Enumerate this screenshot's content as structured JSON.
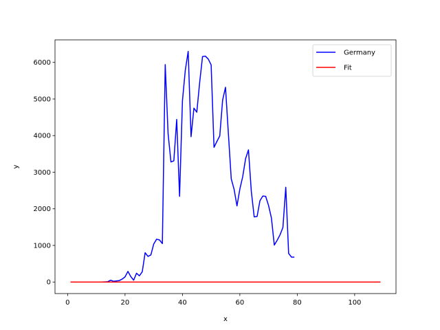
{
  "chart_data": {
    "type": "line",
    "title": "",
    "xlabel": "x",
    "ylabel": "y",
    "xlim": [
      -4.4,
      114.4
    ],
    "ylim": [
      -315,
      6615
    ],
    "xticks": [
      0,
      20,
      40,
      60,
      80,
      100
    ],
    "yticks": [
      0,
      1000,
      2000,
      3000,
      4000,
      5000,
      6000
    ],
    "grid": false,
    "legend": {
      "placement": "top-right"
    },
    "series": [
      {
        "name": "Germany",
        "color": "#0000ff",
        "x": [
          1,
          2,
          3,
          4,
          5,
          6,
          7,
          8,
          9,
          10,
          11,
          12,
          13,
          14,
          15,
          16,
          17,
          18,
          19,
          20,
          21,
          22,
          23,
          24,
          25,
          26,
          27,
          28,
          29,
          30,
          31,
          32,
          33,
          34,
          35,
          36,
          37,
          38,
          39,
          40,
          41,
          42,
          43,
          44,
          45,
          46,
          47,
          48,
          49,
          50,
          51,
          52,
          53,
          54,
          55,
          56,
          57,
          58,
          59,
          60,
          61,
          62,
          63,
          64,
          65,
          66,
          67,
          68,
          69,
          70,
          71,
          72,
          73,
          74,
          75,
          76,
          77,
          78,
          79
        ],
        "y": [
          0,
          0,
          0,
          0,
          0,
          0,
          0,
          0,
          0,
          0,
          0,
          0,
          5,
          10,
          50,
          20,
          30,
          40,
          80,
          140,
          290,
          150,
          50,
          240,
          170,
          280,
          800,
          700,
          740,
          1040,
          1170,
          1150,
          1050,
          5940,
          4050,
          3280,
          3310,
          4440,
          2340,
          4950,
          5790,
          6300,
          3970,
          4750,
          4640,
          5450,
          6160,
          6170,
          6090,
          5930,
          3680,
          3840,
          3990,
          4970,
          5320,
          4060,
          2820,
          2530,
          2080,
          2540,
          2880,
          3370,
          3610,
          2470,
          1780,
          1790,
          2220,
          2350,
          2340,
          2090,
          1750,
          1010,
          1140,
          1290,
          1490,
          2590,
          780,
          680,
          680
        ]
      },
      {
        "name": "Fit",
        "color": "#ff0000",
        "x": [
          1,
          109
        ],
        "y": [
          0,
          0
        ]
      }
    ]
  }
}
